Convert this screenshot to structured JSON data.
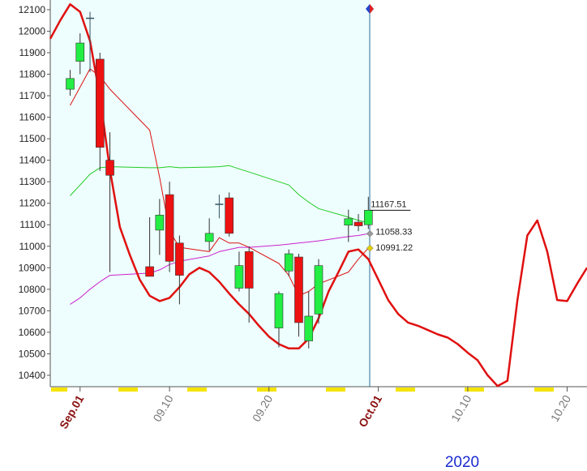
{
  "chart_data": {
    "type": "candlestick",
    "xlabel": "2020",
    "xlim": [
      -2,
      52
    ],
    "ylim": [
      10347,
      12145
    ],
    "yticks": [
      10400,
      10500,
      10600,
      10700,
      10800,
      10900,
      11000,
      11100,
      11200,
      11300,
      11400,
      11500,
      11600,
      11700,
      11800,
      11900,
      12000,
      12100
    ],
    "xticks": [
      {
        "value": 1,
        "label": "Sep.01"
      },
      {
        "value": 10,
        "label": "09.10"
      },
      {
        "value": 20,
        "label": "09.20"
      },
      {
        "value": 31,
        "label": "Oct.01"
      },
      {
        "value": 40,
        "label": "10.10"
      },
      {
        "value": 50,
        "label": "10.20"
      }
    ],
    "up_color": "#22ee44",
    "down_color": "#ee1111",
    "doji_color": "#335566",
    "candles": {
      "x": [
        0,
        1,
        2,
        3,
        4,
        8,
        9,
        10,
        11,
        14,
        15,
        16,
        17,
        18,
        21,
        22,
        23,
        24,
        25,
        28,
        29,
        30
      ],
      "open": [
        11730,
        11860,
        12060,
        11870,
        11400,
        10905,
        11075,
        11240,
        11015,
        11022,
        11195,
        11225,
        10805,
        10975,
        10620,
        10885,
        10950,
        10560,
        10685,
        11098,
        11112,
        11100
      ],
      "high": [
        11820,
        11990,
        12090,
        11900,
        11530,
        11135,
        11220,
        11300,
        11050,
        11130,
        11240,
        11250,
        10975,
        11000,
        10790,
        10985,
        10965,
        10790,
        10940,
        11170,
        11150,
        11230
      ],
      "low": [
        11700,
        11800,
        11810,
        11350,
        10880,
        10860,
        10960,
        10880,
        10730,
        10980,
        11130,
        11045,
        10790,
        10645,
        10530,
        10860,
        10580,
        10525,
        10640,
        11020,
        11070,
        11080
      ],
      "close": [
        11780,
        11945,
        12060,
        11460,
        11330,
        10860,
        11145,
        10930,
        10865,
        11060,
        11195,
        11060,
        10910,
        10805,
        10780,
        10965,
        10645,
        10675,
        10910,
        11128,
        11095,
        11167.51
      ]
    },
    "series": [
      {
        "color": "#dd1111",
        "width": 1,
        "values": [
          11655,
          11740,
          11825,
          11790,
          11730,
          11540,
          11320,
          11070,
          10995,
          10975,
          11040,
          11015,
          11015,
          10995,
          10920,
          10865,
          10770,
          10790,
          10825,
          10880,
          10940,
          10991.22
        ]
      },
      {
        "color": "#22cc22",
        "width": 1,
        "values": [
          11235,
          11285,
          11335,
          11365,
          11370,
          11365,
          11365,
          11370,
          11365,
          11368,
          11370,
          11375,
          11360,
          11345,
          11300,
          11285,
          11240,
          11205,
          11175,
          11135,
          11120,
          11110
        ]
      },
      {
        "color": "#cc22cc",
        "width": 1,
        "values": [
          10730,
          10760,
          10800,
          10835,
          10865,
          10875,
          10890,
          10915,
          10930,
          10955,
          10975,
          10985,
          10995,
          10995,
          11005,
          11010,
          11015,
          11020,
          11025,
          11045,
          11050,
          11058.33
        ]
      },
      {
        "color": "#e01010",
        "width": 2.5,
        "x": [
          -2,
          -1,
          0,
          1,
          2,
          3,
          4,
          5,
          6,
          7,
          8,
          9,
          10,
          11,
          12,
          13,
          14,
          15,
          16,
          17,
          18,
          19,
          20,
          21,
          22,
          23,
          24,
          25,
          26,
          27,
          28,
          29,
          30,
          31,
          32,
          33,
          34,
          35,
          36,
          37,
          38,
          39,
          40,
          41,
          42,
          43,
          44,
          45,
          46,
          47,
          48,
          49,
          50,
          51,
          52
        ],
        "values": [
          11965,
          12050,
          12125,
          12090,
          11955,
          11695,
          11355,
          11090,
          10960,
          10845,
          10770,
          10745,
          10760,
          10810,
          10870,
          10900,
          10880,
          10835,
          10780,
          10730,
          10685,
          10630,
          10580,
          10545,
          10525,
          10525,
          10570,
          10665,
          10790,
          10880,
          10975,
          10985,
          10940,
          10845,
          10750,
          10685,
          10645,
          10630,
          10610,
          10590,
          10575,
          10545,
          10505,
          10470,
          10400,
          10350,
          10375,
          10750,
          11050,
          11120,
          10975,
          10750,
          10745,
          10825,
          10900
        ]
      }
    ]
  }
}
